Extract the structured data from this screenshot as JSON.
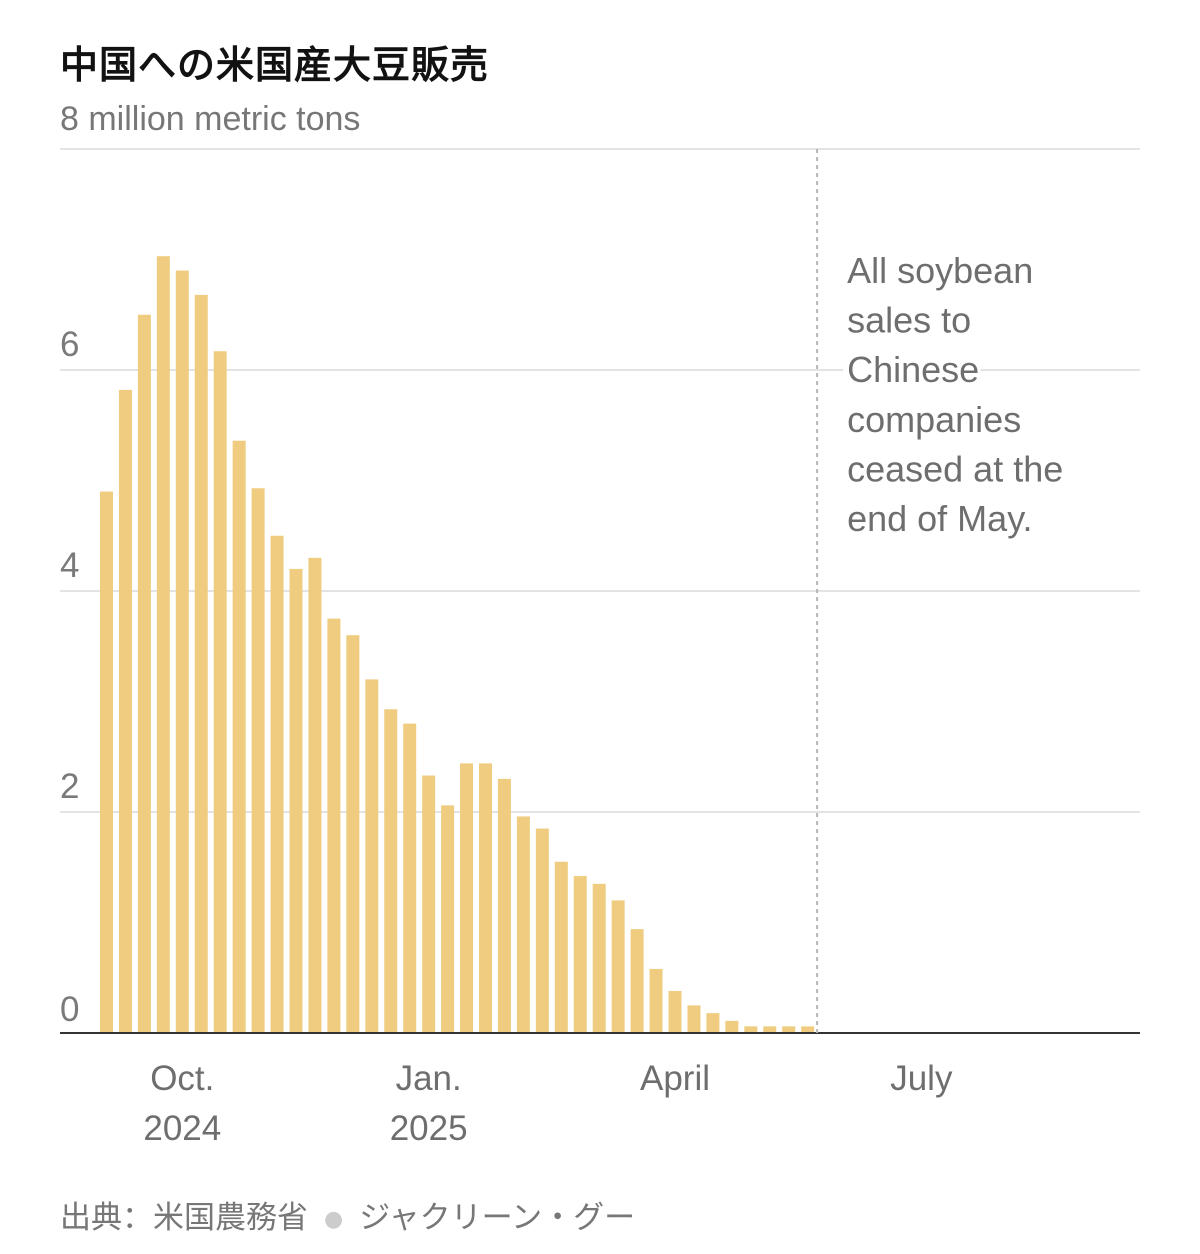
{
  "header": {
    "title": "中国への米国産大豆販売",
    "subtitle": "8 million metric tons"
  },
  "footer": {
    "source": "出典：米国農務省",
    "credit": "ジャクリーン・グー"
  },
  "colors": {
    "bar": "#f0cc80",
    "grid": "#e3e3e3",
    "axis": "#333333",
    "text": "#777777"
  },
  "chart_data": {
    "type": "bar",
    "title": "中国への米国産大豆販売",
    "ylabel": "8 million metric tons",
    "ylim": [
      0,
      8
    ],
    "yticks": [
      "0",
      "2",
      "4",
      "6"
    ],
    "grid": true,
    "xticks": [
      {
        "label": "Oct.",
        "sublabel": "2024",
        "index": 4
      },
      {
        "label": "Jan.",
        "sublabel": "2025",
        "index": 17
      },
      {
        "label": "April",
        "sublabel": "",
        "index": 30
      },
      {
        "label": "July",
        "sublabel": "",
        "index": 43
      }
    ],
    "values": [
      4.9,
      5.82,
      6.5,
      7.03,
      6.9,
      6.68,
      6.17,
      5.36,
      4.93,
      4.5,
      4.2,
      4.3,
      3.75,
      3.6,
      3.2,
      2.93,
      2.8,
      2.33,
      2.06,
      2.44,
      2.44,
      2.3,
      1.96,
      1.85,
      1.55,
      1.42,
      1.35,
      1.2,
      0.94,
      0.58,
      0.38,
      0.25,
      0.18,
      0.11,
      0.06,
      0.06,
      0.06,
      0.06,
      0,
      0,
      0,
      0,
      0,
      0,
      0,
      0,
      0,
      0,
      0,
      0,
      0,
      0,
      0,
      0,
      0,
      0,
      0
    ],
    "annotation": {
      "index": 38,
      "lines": [
        "All soybean",
        "sales to",
        "Chinese",
        "companies",
        "ceased at the",
        "end of May."
      ]
    }
  }
}
